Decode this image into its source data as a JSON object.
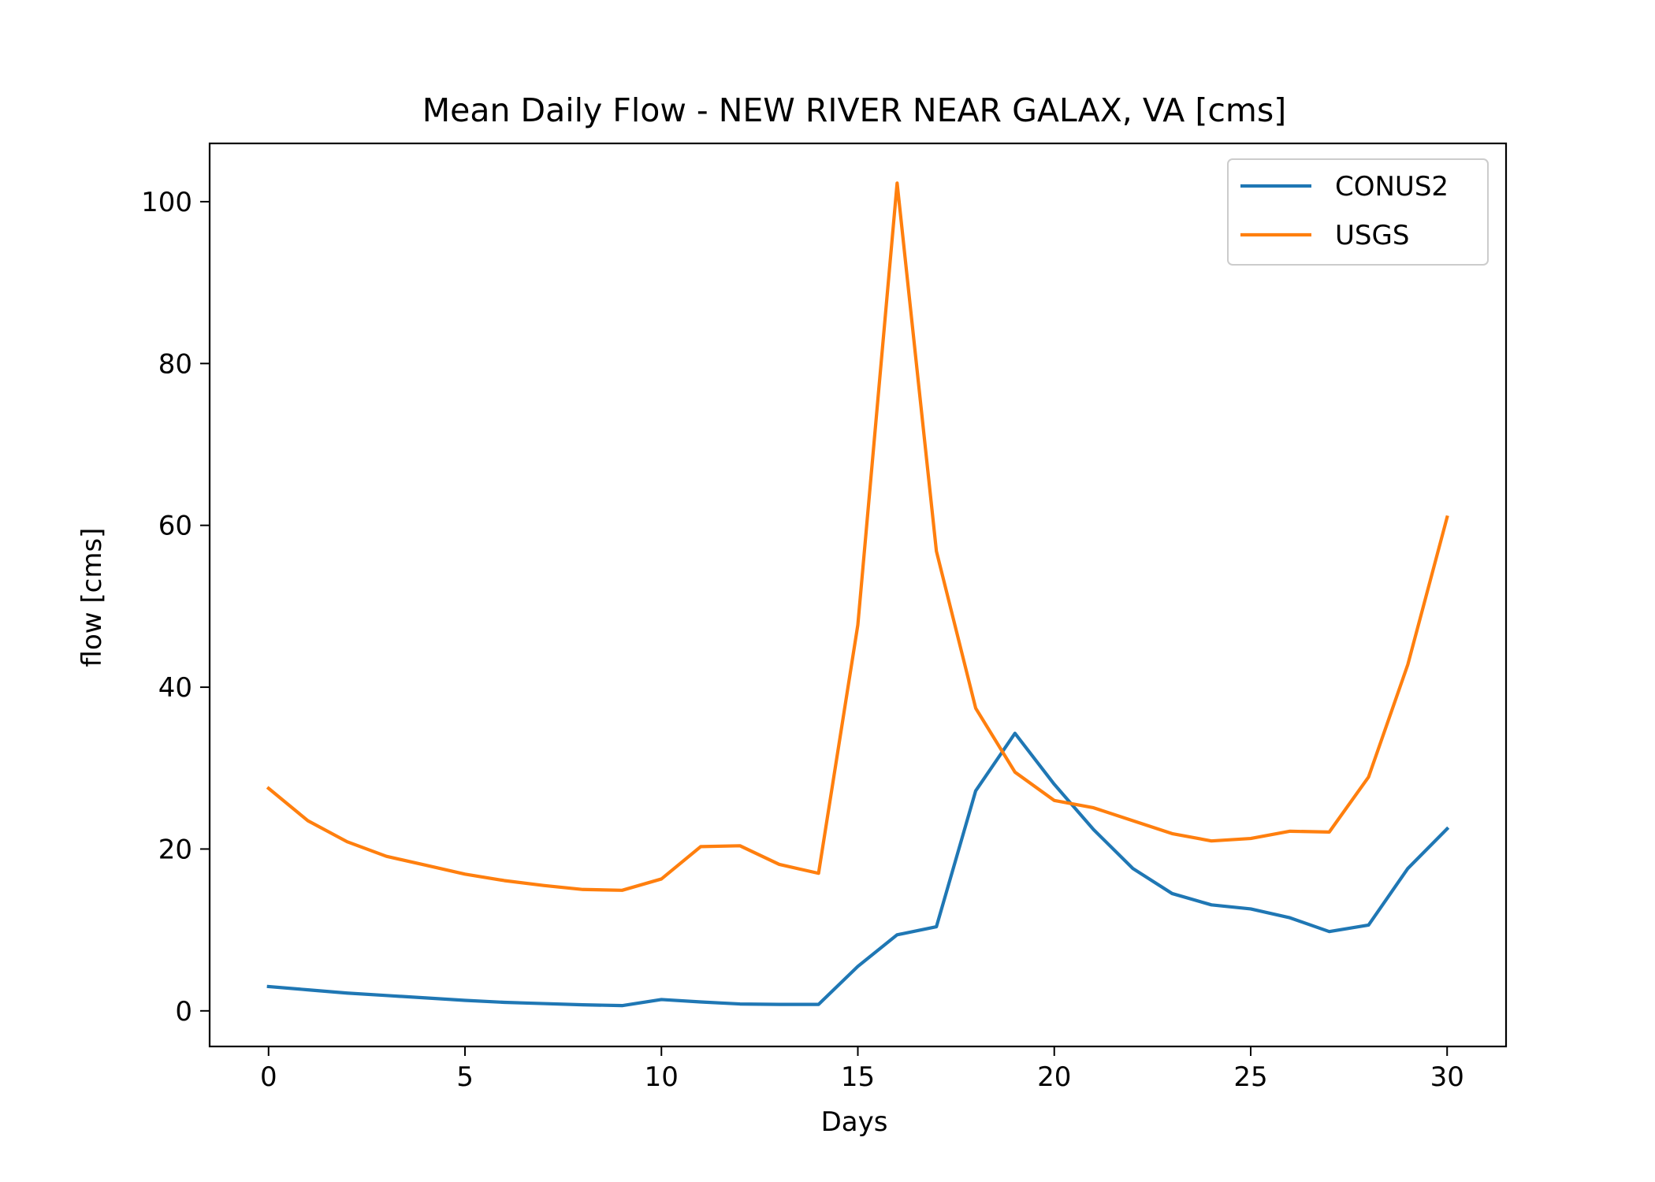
{
  "chart_data": {
    "type": "line",
    "title": "Mean Daily Flow - NEW RIVER NEAR GALAX, VA [cms]",
    "xlabel": "Days",
    "ylabel": "flow [cms]",
    "xlim": [
      -1.5,
      31.5
    ],
    "ylim": [
      -4.4,
      107.2
    ],
    "xticks": [
      0,
      5,
      10,
      15,
      20,
      25,
      30
    ],
    "yticks": [
      0,
      20,
      40,
      60,
      80,
      100
    ],
    "grid": false,
    "legend_position": "upper-right",
    "x": [
      0,
      1,
      2,
      3,
      4,
      5,
      6,
      7,
      8,
      9,
      10,
      11,
      12,
      13,
      14,
      15,
      16,
      17,
      18,
      19,
      20,
      21,
      22,
      23,
      24,
      25,
      26,
      27,
      28,
      29,
      30
    ],
    "series": [
      {
        "name": "CONUS2",
        "color": "#1f77b4",
        "values": [
          3.0,
          2.6,
          2.2,
          1.9,
          1.6,
          1.3,
          1.05,
          0.9,
          0.75,
          0.65,
          1.4,
          1.1,
          0.85,
          0.8,
          0.8,
          5.5,
          9.4,
          10.4,
          27.2,
          34.3,
          28.0,
          22.4,
          17.6,
          14.5,
          13.1,
          12.6,
          11.5,
          9.8,
          10.6,
          17.6,
          22.5
        ]
      },
      {
        "name": "USGS",
        "color": "#ff7f0e",
        "values": [
          27.5,
          23.5,
          20.9,
          19.1,
          18.0,
          16.9,
          16.1,
          15.5,
          15.0,
          14.9,
          16.3,
          20.3,
          20.4,
          18.1,
          17.0,
          47.7,
          102.3,
          56.8,
          37.4,
          29.5,
          26.0,
          25.1,
          23.5,
          21.9,
          21.0,
          21.3,
          22.2,
          22.1,
          28.9,
          42.8,
          61.0
        ]
      }
    ]
  }
}
